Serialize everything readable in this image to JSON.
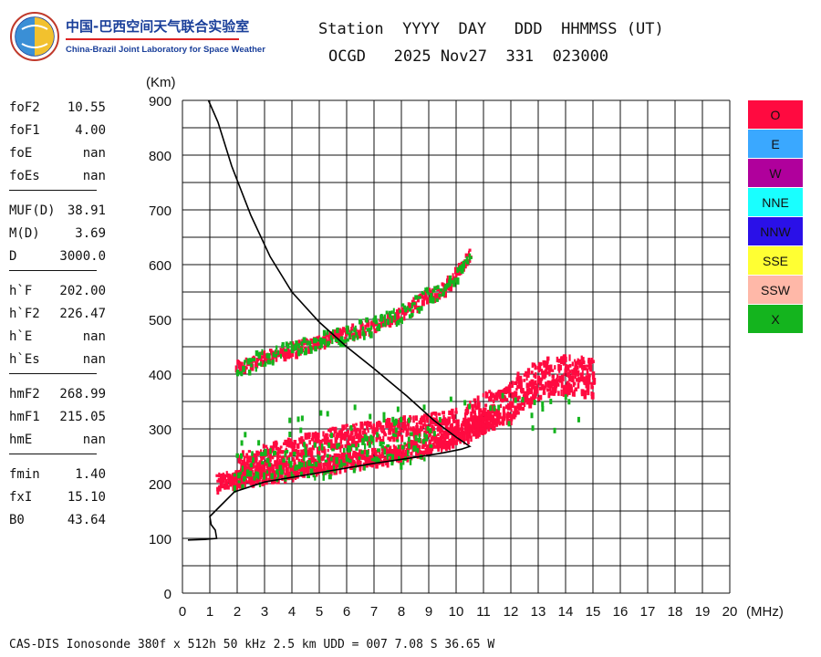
{
  "logo": {
    "cn": "中国-巴西空间天气联合实验室",
    "en": "China-Brazil Joint Laboratory for Space Weather"
  },
  "header": {
    "line1": "Station  YYYY  DAY   DDD  HHMMSS (UT)",
    "line2": "OCGD   2025 Nov27  331  023000"
  },
  "params": [
    [
      {
        "k": "foF2",
        "v": "10.55"
      },
      {
        "k": "foF1",
        "v": "4.00"
      },
      {
        "k": "foE",
        "v": "nan"
      },
      {
        "k": "foEs",
        "v": "nan"
      }
    ],
    [
      {
        "k": "MUF(D)",
        "v": "38.91"
      },
      {
        "k": "M(D)",
        "v": "3.69"
      },
      {
        "k": "D",
        "v": "3000.0"
      }
    ],
    [
      {
        "k": "h`F",
        "v": "202.00"
      },
      {
        "k": "h`F2",
        "v": "226.47"
      },
      {
        "k": "h`E",
        "v": "nan"
      },
      {
        "k": "h`Es",
        "v": "nan"
      }
    ],
    [
      {
        "k": "hmF2",
        "v": "268.99"
      },
      {
        "k": "hmF1",
        "v": "215.05"
      },
      {
        "k": "hmE",
        "v": "nan"
      }
    ],
    [
      {
        "k": "fmin",
        "v": "1.40"
      },
      {
        "k": "fxI",
        "v": "15.10"
      },
      {
        "k": "B0",
        "v": "43.64"
      }
    ]
  ],
  "footer": "CAS-DIS Ionosonde 380f x 512h 50 kHz 2.5 km UDD = 007 7.08 S 36.65 W",
  "legend": [
    {
      "label": "O",
      "color": "#ff0a40",
      "text": "#111111"
    },
    {
      "label": "E",
      "color": "#3aa8ff",
      "text": "#111111"
    },
    {
      "label": "W",
      "color": "#b0009c",
      "text": "#111111"
    },
    {
      "label": "NNE",
      "color": "#19ffff",
      "text": "#111111"
    },
    {
      "label": "NNW",
      "color": "#2a10e8",
      "text": "#111111"
    },
    {
      "label": "SSE",
      "color": "#ffff33",
      "text": "#111111"
    },
    {
      "label": "SSW",
      "color": "#ffb8a8",
      "text": "#111111"
    },
    {
      "label": "X",
      "color": "#14b41e",
      "text": "#111111"
    }
  ],
  "chart_data": {
    "type": "scatter",
    "xlabel": "(MHz)",
    "ylabel": "(Km)",
    "xlim": [
      0,
      20
    ],
    "ylim": [
      0,
      900
    ],
    "x_ticks": [
      0,
      1,
      2,
      3,
      4,
      5,
      6,
      7,
      8,
      9,
      10,
      11,
      12,
      13,
      14,
      15,
      16,
      17,
      18,
      19,
      20
    ],
    "y_ticks": [
      0,
      100,
      200,
      300,
      400,
      500,
      600,
      700,
      800,
      900
    ],
    "grid": true,
    "colors": {
      "O": "#ff0a40",
      "X": "#14b41e",
      "profile": "#000000"
    },
    "o_trace_lower": [
      [
        1.2,
        205
      ],
      [
        2,
        215
      ],
      [
        3,
        223
      ],
      [
        4,
        230
      ],
      [
        5,
        238
      ],
      [
        6,
        245
      ],
      [
        7,
        252
      ],
      [
        8,
        262
      ],
      [
        9,
        275
      ],
      [
        9.8,
        290
      ],
      [
        10.3,
        305
      ],
      [
        11,
        320
      ],
      [
        11.5,
        330
      ]
    ],
    "o_trace_upper": [
      [
        2,
        240
      ],
      [
        3,
        255
      ],
      [
        4,
        268
      ],
      [
        5,
        280
      ],
      [
        6,
        292
      ],
      [
        7,
        298
      ],
      [
        8,
        305
      ],
      [
        9,
        312
      ],
      [
        10,
        320
      ]
    ],
    "o_blob_f2": [
      [
        10.2,
        310
      ],
      [
        11,
        335
      ],
      [
        11.8,
        345
      ],
      [
        12.2,
        370
      ],
      [
        13,
        395
      ],
      [
        13.8,
        405
      ],
      [
        14.5,
        400
      ],
      [
        15,
        395
      ]
    ],
    "o_echo_2hop": [
      [
        1.9,
        415
      ],
      [
        3,
        435
      ],
      [
        4,
        450
      ],
      [
        5,
        465
      ],
      [
        6,
        480
      ],
      [
        7,
        495
      ],
      [
        8,
        515
      ],
      [
        8.8,
        545
      ],
      [
        9.5,
        560
      ],
      [
        10.5,
        625
      ]
    ],
    "x_trace": [
      [
        1.8,
        225
      ],
      [
        3,
        235
      ],
      [
        4,
        240
      ],
      [
        5,
        245
      ],
      [
        6,
        252
      ],
      [
        7,
        258
      ],
      [
        8,
        265
      ],
      [
        9,
        280
      ]
    ],
    "profile": [
      [
        0.2,
        97
      ],
      [
        0.8,
        98
      ],
      [
        1.25,
        100
      ],
      [
        1.2,
        115
      ],
      [
        1.05,
        125
      ],
      [
        1.0,
        140
      ],
      [
        1.4,
        160
      ],
      [
        1.9,
        185
      ],
      [
        3,
        203
      ],
      [
        5,
        220
      ],
      [
        7,
        237
      ],
      [
        8.5,
        248
      ],
      [
        9.5,
        256
      ],
      [
        10.2,
        263
      ],
      [
        10.5,
        268
      ],
      [
        10,
        285
      ],
      [
        9.2,
        315
      ],
      [
        8.2,
        360
      ],
      [
        7,
        410
      ],
      [
        6,
        450
      ],
      [
        5,
        495
      ],
      [
        4,
        550
      ],
      [
        3.2,
        615
      ],
      [
        2.5,
        690
      ],
      [
        1.8,
        780
      ],
      [
        1.3,
        860
      ],
      [
        0.95,
        900
      ]
    ]
  }
}
